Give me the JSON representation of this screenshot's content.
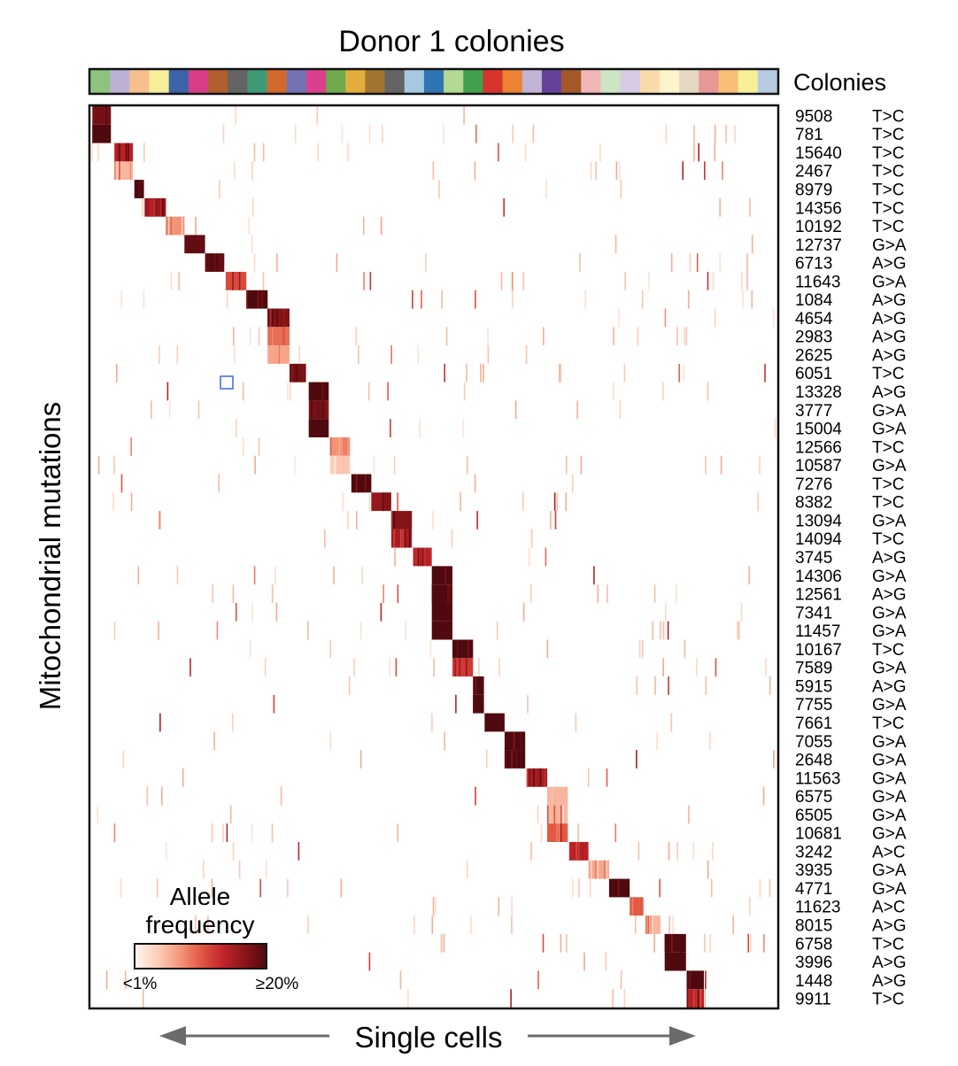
{
  "chart_data": {
    "type": "heatmap",
    "title": "Donor 1 colonies",
    "xlabel": "Single cells",
    "ylabel": "Mitochondrial mutations",
    "colonies_label": "Colonies",
    "colony_colors": [
      "#8cc47e",
      "#bcb1d4",
      "#f6c08d",
      "#f7ee9a",
      "#3d63a8",
      "#d93d87",
      "#b05f2d",
      "#646464",
      "#3f9a75",
      "#d2692d",
      "#7273b4",
      "#d9418e",
      "#70a84c",
      "#e2ad3b",
      "#a27630",
      "#646464",
      "#a7c8e1",
      "#2f75b3",
      "#b4d995",
      "#41a04a",
      "#d7352c",
      "#ec8233",
      "#c0b3d6",
      "#66419a",
      "#a4592b",
      "#f1b7b7",
      "#cce5c4",
      "#d8cbe4",
      "#fad9aa",
      "#fcf5cb",
      "#e4d8c2",
      "#e99697",
      "#f8be76",
      "#f8ef99",
      "#b7cbe0"
    ],
    "legend": {
      "title_lines": [
        "Allele",
        "frequency"
      ],
      "min_label": "<1%",
      "max_label": "≥20%",
      "scale": [
        "#fff5f0",
        "#fcd2bd",
        "#f49a7e",
        "#e25a44",
        "#c1252b",
        "#8b1519",
        "#4f0a0f"
      ]
    },
    "rows": [
      {
        "position": "9508",
        "mutation": "T>C",
        "block_start": 0.003,
        "block_end": 0.03,
        "intensity": 0.9
      },
      {
        "position": "781",
        "mutation": "T>C",
        "block_start": 0.003,
        "block_end": 0.03,
        "intensity": 1.0
      },
      {
        "position": "15640",
        "mutation": "T>C",
        "block_start": 0.035,
        "block_end": 0.062,
        "intensity": 0.7
      },
      {
        "position": "2467",
        "mutation": "T>C",
        "block_start": 0.035,
        "block_end": 0.062,
        "intensity": 0.25
      },
      {
        "position": "8979",
        "mutation": "T>C",
        "block_start": 0.064,
        "block_end": 0.078,
        "intensity": 1.0
      },
      {
        "position": "14356",
        "mutation": "T>C",
        "block_start": 0.079,
        "block_end": 0.11,
        "intensity": 0.8
      },
      {
        "position": "10192",
        "mutation": "T>C",
        "block_start": 0.11,
        "block_end": 0.137,
        "intensity": 0.35
      },
      {
        "position": "12737",
        "mutation": "G>A",
        "block_start": 0.137,
        "block_end": 0.167,
        "intensity": 0.95
      },
      {
        "position": "6713",
        "mutation": "A>G",
        "block_start": 0.167,
        "block_end": 0.195,
        "intensity": 0.95
      },
      {
        "position": "11643",
        "mutation": "G>A",
        "block_start": 0.197,
        "block_end": 0.227,
        "intensity": 0.55
      },
      {
        "position": "1084",
        "mutation": "A>G",
        "block_start": 0.227,
        "block_end": 0.258,
        "intensity": 1.0
      },
      {
        "position": "4654",
        "mutation": "A>G",
        "block_start": 0.258,
        "block_end": 0.29,
        "intensity": 0.85
      },
      {
        "position": "2983",
        "mutation": "A>G",
        "block_start": 0.258,
        "block_end": 0.29,
        "intensity": 0.45
      },
      {
        "position": "2625",
        "mutation": "A>G",
        "block_start": 0.258,
        "block_end": 0.29,
        "intensity": 0.3
      },
      {
        "position": "6051",
        "mutation": "T>C",
        "block_start": 0.29,
        "block_end": 0.314,
        "intensity": 0.9
      },
      {
        "position": "13328",
        "mutation": "A>G",
        "block_start": 0.318,
        "block_end": 0.347,
        "intensity": 1.0
      },
      {
        "position": "3777",
        "mutation": "G>A",
        "block_start": 0.318,
        "block_end": 0.347,
        "intensity": 0.9
      },
      {
        "position": "15004",
        "mutation": "G>A",
        "block_start": 0.318,
        "block_end": 0.347,
        "intensity": 1.0
      },
      {
        "position": "12566",
        "mutation": "T>C",
        "block_start": 0.349,
        "block_end": 0.378,
        "intensity": 0.35
      },
      {
        "position": "10587",
        "mutation": "G>A",
        "block_start": 0.349,
        "block_end": 0.378,
        "intensity": 0.2
      },
      {
        "position": "7276",
        "mutation": "T>C",
        "block_start": 0.38,
        "block_end": 0.409,
        "intensity": 1.0
      },
      {
        "position": "8382",
        "mutation": "T>C",
        "block_start": 0.409,
        "block_end": 0.438,
        "intensity": 0.8
      },
      {
        "position": "13094",
        "mutation": "G>A",
        "block_start": 0.438,
        "block_end": 0.468,
        "intensity": 0.85
      },
      {
        "position": "14094",
        "mutation": "T>C",
        "block_start": 0.438,
        "block_end": 0.468,
        "intensity": 0.75
      },
      {
        "position": "3745",
        "mutation": "A>G",
        "block_start": 0.47,
        "block_end": 0.497,
        "intensity": 0.65
      },
      {
        "position": "14306",
        "mutation": "G>A",
        "block_start": 0.497,
        "block_end": 0.527,
        "intensity": 1.0
      },
      {
        "position": "12561",
        "mutation": "A>G",
        "block_start": 0.497,
        "block_end": 0.527,
        "intensity": 1.0
      },
      {
        "position": "7341",
        "mutation": "G>A",
        "block_start": 0.497,
        "block_end": 0.527,
        "intensity": 1.0
      },
      {
        "position": "11457",
        "mutation": "G>A",
        "block_start": 0.497,
        "block_end": 0.527,
        "intensity": 1.0
      },
      {
        "position": "10167",
        "mutation": "T>C",
        "block_start": 0.527,
        "block_end": 0.557,
        "intensity": 1.0
      },
      {
        "position": "7589",
        "mutation": "G>A",
        "block_start": 0.527,
        "block_end": 0.557,
        "intensity": 0.6
      },
      {
        "position": "5915",
        "mutation": "A>G",
        "block_start": 0.557,
        "block_end": 0.573,
        "intensity": 1.0
      },
      {
        "position": "7755",
        "mutation": "G>A",
        "block_start": 0.557,
        "block_end": 0.573,
        "intensity": 1.0
      },
      {
        "position": "7661",
        "mutation": "T>C",
        "block_start": 0.574,
        "block_end": 0.603,
        "intensity": 1.0
      },
      {
        "position": "7055",
        "mutation": "G>A",
        "block_start": 0.603,
        "block_end": 0.633,
        "intensity": 1.0
      },
      {
        "position": "2648",
        "mutation": "G>A",
        "block_start": 0.603,
        "block_end": 0.633,
        "intensity": 1.0
      },
      {
        "position": "11563",
        "mutation": "G>A",
        "block_start": 0.635,
        "block_end": 0.665,
        "intensity": 0.75
      },
      {
        "position": "6575",
        "mutation": "G>A",
        "block_start": 0.665,
        "block_end": 0.695,
        "intensity": 0.25
      },
      {
        "position": "6505",
        "mutation": "G>A",
        "block_start": 0.665,
        "block_end": 0.695,
        "intensity": 0.25
      },
      {
        "position": "10681",
        "mutation": "G>A",
        "block_start": 0.665,
        "block_end": 0.695,
        "intensity": 0.5
      },
      {
        "position": "3242",
        "mutation": "A>C",
        "block_start": 0.697,
        "block_end": 0.725,
        "intensity": 0.7
      },
      {
        "position": "3935",
        "mutation": "G>A",
        "block_start": 0.725,
        "block_end": 0.755,
        "intensity": 0.3
      },
      {
        "position": "4771",
        "mutation": "G>A",
        "block_start": 0.755,
        "block_end": 0.785,
        "intensity": 1.0
      },
      {
        "position": "11623",
        "mutation": "A>C",
        "block_start": 0.785,
        "block_end": 0.805,
        "intensity": 0.5
      },
      {
        "position": "8015",
        "mutation": "A>G",
        "block_start": 0.808,
        "block_end": 0.83,
        "intensity": 0.25
      },
      {
        "position": "6758",
        "mutation": "T>C",
        "block_start": 0.836,
        "block_end": 0.867,
        "intensity": 1.0
      },
      {
        "position": "3996",
        "mutation": "A>G",
        "block_start": 0.836,
        "block_end": 0.867,
        "intensity": 1.0
      },
      {
        "position": "1448",
        "mutation": "A>G",
        "block_start": 0.868,
        "block_end": 0.893,
        "intensity": 1.0
      },
      {
        "position": "9911",
        "mutation": "T>C",
        "block_start": 0.868,
        "block_end": 0.893,
        "intensity": 0.7
      }
    ]
  }
}
